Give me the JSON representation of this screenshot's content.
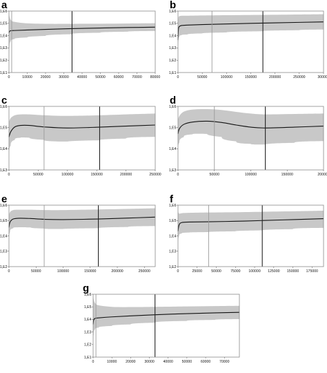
{
  "chart_data": [
    {
      "type": "area",
      "panel_label": "a",
      "xlim": [
        0,
        80000
      ],
      "x_ticks": [
        0,
        10000,
        20000,
        30000,
        40000,
        50000,
        60000,
        70000,
        80000
      ],
      "x_tick_labels": [
        "0",
        "10000",
        "20000",
        "30000",
        "40000",
        "50000",
        "60000",
        "70000",
        "80000"
      ],
      "y_log_range": [
        1,
        6
      ],
      "y_ticks": [
        1,
        2,
        3,
        4,
        5,
        6
      ],
      "y_tick_labels": [
        "1,E1",
        "1,E2",
        "1,E3",
        "1,E4",
        "1,E5",
        "1,E6"
      ],
      "markers": [
        {
          "x": 1500,
          "style": "thin"
        },
        {
          "x": 34500,
          "style": "thick"
        }
      ],
      "x": [
        0,
        300,
        1000,
        3000,
        10000,
        20000,
        34500,
        50000,
        65000,
        80000
      ],
      "mean": [
        4.22,
        4.35,
        4.4,
        4.42,
        4.46,
        4.51,
        4.57,
        4.62,
        4.66,
        4.69
      ],
      "upper": [
        5.82,
        5.55,
        5.28,
        5.12,
        5.0,
        4.96,
        4.96,
        4.97,
        4.99,
        5.01
      ],
      "lower": [
        2.15,
        3.05,
        3.55,
        3.72,
        3.85,
        3.98,
        4.12,
        4.24,
        4.32,
        4.38
      ]
    },
    {
      "type": "area",
      "panel_label": "b",
      "xlim": [
        0,
        300000
      ],
      "x_ticks": [
        0,
        50000,
        100000,
        150000,
        200000,
        250000,
        300000
      ],
      "x_tick_labels": [
        "0",
        "50000",
        "100000",
        "150000",
        "200000",
        "250000",
        "300000"
      ],
      "y_log_range": [
        1,
        6
      ],
      "y_ticks": [
        1,
        2,
        3,
        4,
        5,
        6
      ],
      "y_tick_labels": [
        "1,E1",
        "1,E2",
        "1,E3",
        "1,E4",
        "1,E5",
        "1,E6"
      ],
      "markers": [
        {
          "x": 70000,
          "style": "thin"
        },
        {
          "x": 175000,
          "style": "thick"
        }
      ],
      "x": [
        0,
        1000,
        3000,
        8000,
        20000,
        50000,
        100000,
        175000,
        250000,
        300000
      ],
      "mean": [
        3.65,
        4.55,
        4.75,
        4.83,
        4.86,
        4.9,
        4.95,
        5.02,
        5.08,
        5.12
      ],
      "upper": [
        4.5,
        5.45,
        5.58,
        5.62,
        5.62,
        5.64,
        5.66,
        5.69,
        5.72,
        5.74
      ],
      "lower": [
        2.8,
        3.6,
        3.92,
        4.05,
        4.1,
        4.18,
        4.26,
        4.36,
        4.44,
        4.5
      ]
    },
    {
      "type": "area",
      "panel_label": "c",
      "xlim": [
        0,
        250000
      ],
      "x_ticks": [
        0,
        50000,
        100000,
        150000,
        200000,
        250000
      ],
      "x_tick_labels": [
        "0",
        "50000",
        "100000",
        "150000",
        "200000",
        "250000"
      ],
      "y_log_range": [
        3,
        6
      ],
      "y_ticks": [
        3,
        4,
        5,
        6
      ],
      "y_tick_labels": [
        "1,E3",
        "1,E4",
        "1,E5",
        "1,E6"
      ],
      "markers": [
        {
          "x": 60000,
          "style": "thin"
        },
        {
          "x": 155000,
          "style": "thick"
        }
      ],
      "x": [
        0,
        3000,
        10000,
        20000,
        35000,
        60000,
        100000,
        155000,
        200000,
        250000
      ],
      "mean": [
        4.55,
        4.8,
        5.03,
        5.1,
        5.1,
        5.03,
        4.98,
        5.02,
        5.07,
        5.12
      ],
      "upper": [
        5.25,
        5.45,
        5.58,
        5.62,
        5.62,
        5.58,
        5.55,
        5.58,
        5.62,
        5.66
      ],
      "lower": [
        3.8,
        4.15,
        4.42,
        4.52,
        4.52,
        4.42,
        4.34,
        4.4,
        4.48,
        4.56
      ]
    },
    {
      "type": "area",
      "panel_label": "d",
      "xlim": [
        0,
        200000
      ],
      "x_ticks": [
        0,
        50000,
        100000,
        150000,
        200000
      ],
      "x_tick_labels": [
        "0",
        "50000",
        "100000",
        "150000",
        "200000"
      ],
      "y_log_range": [
        3,
        6
      ],
      "y_ticks": [
        3,
        4,
        5,
        6
      ],
      "y_tick_labels": [
        "1,E3",
        "1,E4",
        "1,E5",
        "1,E6"
      ],
      "markers": [
        {
          "x": 50000,
          "style": "thin"
        },
        {
          "x": 120000,
          "style": "thick"
        }
      ],
      "x": [
        0,
        2000,
        8000,
        20000,
        40000,
        60000,
        80000,
        100000,
        120000,
        160000,
        200000
      ],
      "mean": [
        4.7,
        4.95,
        5.15,
        5.26,
        5.3,
        5.24,
        5.12,
        5.02,
        4.98,
        5.02,
        5.07
      ],
      "upper": [
        5.35,
        5.55,
        5.75,
        5.85,
        5.87,
        5.83,
        5.74,
        5.66,
        5.62,
        5.64,
        5.66
      ],
      "lower": [
        4.0,
        4.3,
        4.55,
        4.68,
        4.7,
        4.56,
        4.35,
        4.23,
        4.2,
        4.28,
        4.36
      ]
    },
    {
      "type": "area",
      "panel_label": "e",
      "xlim": [
        0,
        270000
      ],
      "x_ticks": [
        0,
        50000,
        100000,
        150000,
        200000,
        250000
      ],
      "x_tick_labels": [
        "0",
        "50000",
        "100000",
        "150000",
        "200000",
        "250000"
      ],
      "y_log_range": [
        2,
        6
      ],
      "y_ticks": [
        2,
        3,
        4,
        5,
        6
      ],
      "y_tick_labels": [
        "1,E2",
        "1,E3",
        "1,E4",
        "1,E5",
        "1,E6"
      ],
      "markers": [
        {
          "x": 65000,
          "style": "thin"
        },
        {
          "x": 165000,
          "style": "thick"
        }
      ],
      "x": [
        0,
        2000,
        8000,
        20000,
        40000,
        65000,
        100000,
        165000,
        220000,
        270000
      ],
      "mean": [
        4.55,
        4.9,
        5.1,
        5.15,
        5.13,
        5.08,
        5.06,
        5.1,
        5.16,
        5.22
      ],
      "upper": [
        5.3,
        5.55,
        5.68,
        5.7,
        5.7,
        5.68,
        5.68,
        5.72,
        5.76,
        5.8
      ],
      "lower": [
        3.8,
        4.25,
        4.5,
        4.56,
        4.55,
        4.48,
        4.45,
        4.5,
        4.58,
        4.64
      ]
    },
    {
      "type": "area",
      "panel_label": "f",
      "xlim": [
        0,
        190000
      ],
      "x_ticks": [
        0,
        25000,
        50000,
        75000,
        100000,
        125000,
        150000,
        175000
      ],
      "x_tick_labels": [
        "0",
        "25000",
        "50000",
        "75000",
        "100000",
        "125000",
        "150000",
        "175000"
      ],
      "y_log_range": [
        2,
        6
      ],
      "y_ticks": [
        2,
        3,
        4,
        5,
        6
      ],
      "y_tick_labels": [
        "1,E2",
        "1,E3",
        "1,E4",
        "1,E5",
        "1,E6"
      ],
      "markers": [
        {
          "x": 40000,
          "style": "thin"
        },
        {
          "x": 110000,
          "style": "thick"
        }
      ],
      "x": [
        0,
        1500,
        5000,
        15000,
        40000,
        75000,
        110000,
        150000,
        190000
      ],
      "mean": [
        4.3,
        4.72,
        4.87,
        4.9,
        4.92,
        4.95,
        5.0,
        5.06,
        5.12
      ],
      "upper": [
        5.6,
        5.45,
        5.48,
        5.5,
        5.52,
        5.54,
        5.57,
        5.6,
        5.64
      ],
      "lower": [
        3.5,
        4.0,
        4.16,
        4.22,
        4.25,
        4.3,
        4.36,
        4.44,
        4.52
      ]
    },
    {
      "type": "area",
      "panel_label": "g",
      "xlim": [
        0,
        78000
      ],
      "x_ticks": [
        0,
        10000,
        20000,
        30000,
        40000,
        50000,
        60000,
        70000
      ],
      "x_tick_labels": [
        "0",
        "10000",
        "20000",
        "30000",
        "40000",
        "50000",
        "60000",
        "70000"
      ],
      "y_log_range": [
        1,
        6
      ],
      "y_ticks": [
        1,
        2,
        3,
        4,
        5,
        6
      ],
      "y_tick_labels": [
        "1,E1",
        "1,E2",
        "1,E3",
        "1,E4",
        "1,E5",
        "1,E6"
      ],
      "markers": [
        {
          "x": 1500,
          "style": "thin"
        },
        {
          "x": 33000,
          "style": "thick"
        }
      ],
      "x": [
        0,
        300,
        1000,
        3000,
        10000,
        20000,
        33000,
        50000,
        65000,
        78000
      ],
      "mean": [
        3.6,
        3.95,
        4.08,
        4.12,
        4.2,
        4.28,
        4.37,
        4.46,
        4.52,
        4.56
      ],
      "upper": [
        5.9,
        5.6,
        5.3,
        5.12,
        5.0,
        4.98,
        5.0,
        5.03,
        5.06,
        5.08
      ],
      "lower": [
        1.9,
        2.8,
        3.2,
        3.35,
        3.48,
        3.6,
        3.74,
        3.88,
        3.96,
        4.02
      ]
    }
  ]
}
